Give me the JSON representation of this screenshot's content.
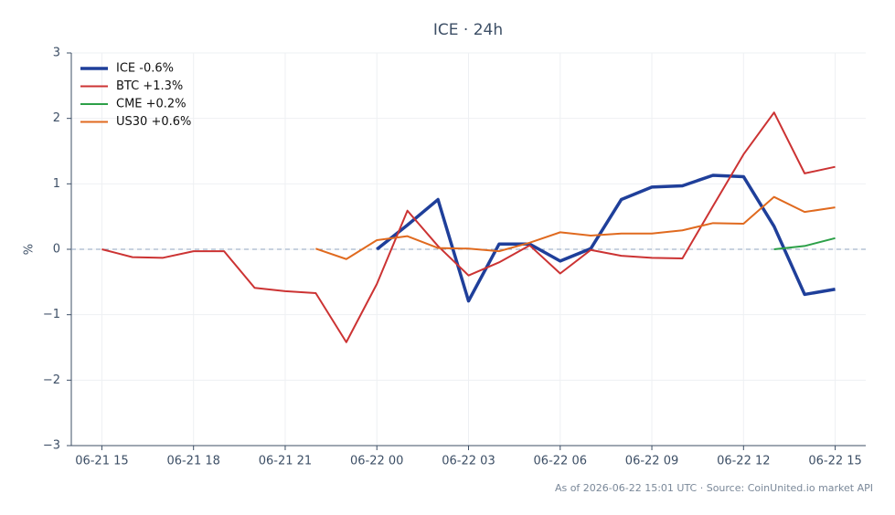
{
  "chart_data": {
    "type": "line",
    "title": "ICE · 24h",
    "y_label": "%",
    "footnote": "As of 2026-06-22 15:01 UTC · Source: CoinUnited.io market API",
    "x": [
      "06-21 15",
      "06-21 16",
      "06-21 17",
      "06-21 18",
      "06-21 19",
      "06-21 20",
      "06-21 21",
      "06-21 22",
      "06-21 23",
      "06-22 00",
      "06-22 01",
      "06-22 02",
      "06-22 03",
      "06-22 04",
      "06-22 05",
      "06-22 06",
      "06-22 07",
      "06-22 08",
      "06-22 09",
      "06-22 10",
      "06-22 11",
      "06-22 12",
      "06-22 13",
      "06-22 14",
      "06-22 15"
    ],
    "xlim": [
      "06-21 14",
      "06-22 16"
    ],
    "xticks": [
      "06-21 15",
      "06-21 18",
      "06-21 21",
      "06-22 00",
      "06-22 03",
      "06-22 06",
      "06-22 09",
      "06-22 12",
      "06-22 15"
    ],
    "ylim": [
      -3,
      3
    ],
    "yticks": [
      {
        "value": -3,
        "label": "−3"
      },
      {
        "value": -2,
        "label": "−2"
      },
      {
        "value": -1,
        "label": "−1"
      },
      0,
      1,
      2,
      3
    ],
    "grid": true,
    "reference_line": 0,
    "legend": "upper left",
    "series": [
      {
        "name": "ICE -0.6%",
        "color": "#1f3f9a",
        "line_width": 3.5,
        "values": [
          null,
          null,
          null,
          null,
          null,
          null,
          null,
          null,
          null,
          0.0,
          0.37,
          0.76,
          -0.79,
          0.08,
          0.08,
          -0.18,
          0.01,
          0.76,
          0.95,
          0.97,
          1.13,
          1.11,
          0.35,
          -0.69,
          -0.61
        ]
      },
      {
        "name": "BTC +1.3%",
        "color": "#cc3333",
        "line_width": 2,
        "values": [
          0.0,
          -0.12,
          -0.13,
          -0.03,
          -0.03,
          -0.59,
          -0.64,
          -0.67,
          -1.42,
          -0.53,
          0.59,
          0.05,
          -0.4,
          -0.2,
          0.06,
          -0.37,
          -0.01,
          -0.1,
          -0.13,
          -0.14,
          0.66,
          1.45,
          2.09,
          1.16,
          1.26
        ]
      },
      {
        "name": "CME +0.2%",
        "color": "#2ca048",
        "line_width": 2,
        "values": [
          null,
          null,
          null,
          null,
          null,
          null,
          null,
          null,
          null,
          null,
          null,
          null,
          null,
          null,
          null,
          null,
          null,
          null,
          null,
          null,
          null,
          null,
          0.0,
          0.05,
          0.17
        ]
      },
      {
        "name": "US30 +0.6%",
        "color": "#e06a1f",
        "line_width": 2,
        "values": [
          null,
          null,
          null,
          null,
          null,
          null,
          null,
          0.01,
          -0.15,
          0.14,
          0.2,
          0.02,
          0.01,
          -0.03,
          0.1,
          0.26,
          0.21,
          0.24,
          0.24,
          0.29,
          0.4,
          0.39,
          0.8,
          0.57,
          0.64
        ]
      }
    ]
  }
}
